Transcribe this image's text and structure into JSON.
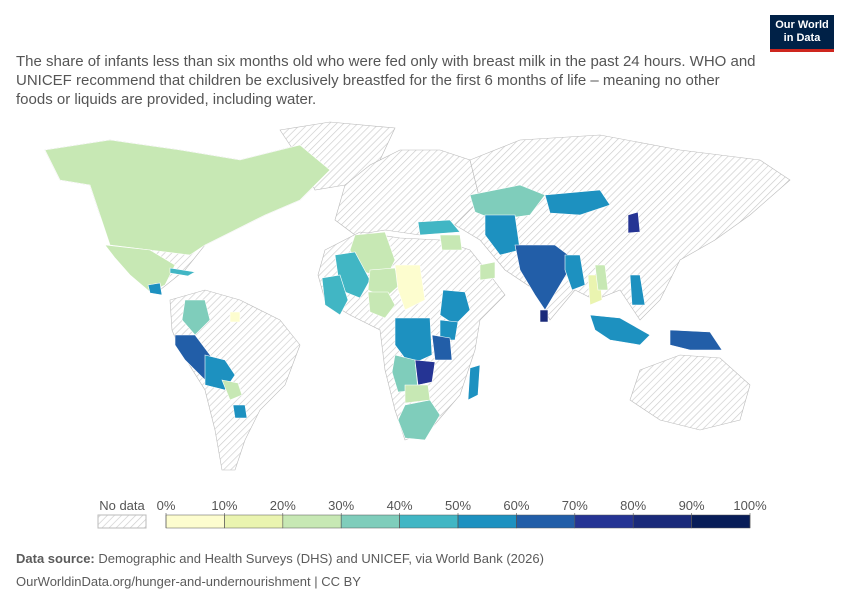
{
  "header": {
    "subtitle": "The share of infants less than six months old who were fed only with breast milk in the past 24 hours. WHO and UNICEF recommend that children be exclusively breastfed for the first 6 months of life – meaning no other foods or liquids are provided, including water.",
    "logo": [
      "Our World",
      "in Data"
    ]
  },
  "map": {
    "values": [
      26,
      28,
      55,
      45,
      33,
      64,
      52,
      27,
      53,
      5,
      27,
      40,
      22,
      5,
      29,
      42,
      59,
      58,
      50,
      64,
      37,
      70,
      32,
      22,
      51,
      38,
      58,
      55,
      60,
      52,
      14,
      52,
      60,
      50,
      71,
      80,
      45,
      25,
      26,
      25
    ]
  },
  "legend": {
    "no_data": "No data",
    "ticks": [
      {
        "value": 0,
        "label": "0%"
      },
      {
        "value": 10,
        "label": "10%"
      },
      {
        "value": 20,
        "label": "20%"
      },
      {
        "value": 30,
        "label": "30%"
      },
      {
        "value": 40,
        "label": "40%"
      },
      {
        "value": 50,
        "label": "50%"
      },
      {
        "value": 60,
        "label": "60%"
      },
      {
        "value": 70,
        "label": "70%"
      },
      {
        "value": 80,
        "label": "80%"
      },
      {
        "value": 90,
        "label": "90%"
      },
      {
        "value": 100,
        "label": "100%"
      }
    ],
    "colors": [
      "#fdfdcf",
      "#eaf4b0",
      "#c7e8b4",
      "#7fcdbb",
      "#41b6c4",
      "#1d91c0",
      "#225ea8",
      "#253494",
      "#1a2a7a",
      "#081d58"
    ]
  },
  "footer": {
    "source_label": "Data source:",
    "source": "Demographic and Health Surveys (DHS) and UNICEF, via World Bank (2026)",
    "url": "OurWorldinData.org/hunger-and-undernourishment | CC BY"
  }
}
